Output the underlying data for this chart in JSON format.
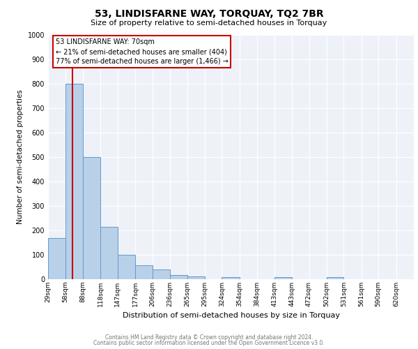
{
  "title": "53, LINDISFARNE WAY, TORQUAY, TQ2 7BR",
  "subtitle": "Size of property relative to semi-detached houses in Torquay",
  "xlabel": "Distribution of semi-detached houses by size in Torquay",
  "ylabel": "Number of semi-detached properties",
  "bin_edges": [
    29,
    58,
    88,
    118,
    147,
    177,
    206,
    236,
    265,
    295,
    324,
    354,
    384,
    413,
    443,
    472,
    502,
    531,
    561,
    590,
    620
  ],
  "bin_labels": [
    "29sqm",
    "58sqm",
    "88sqm",
    "118sqm",
    "147sqm",
    "177sqm",
    "206sqm",
    "236sqm",
    "265sqm",
    "295sqm",
    "324sqm",
    "354sqm",
    "384sqm",
    "413sqm",
    "443sqm",
    "472sqm",
    "502sqm",
    "531sqm",
    "561sqm",
    "590sqm",
    "620sqm"
  ],
  "bar_heights": [
    170,
    800,
    500,
    215,
    100,
    58,
    40,
    18,
    12,
    0,
    8,
    0,
    0,
    10,
    0,
    0,
    10,
    0,
    0,
    0,
    0
  ],
  "bar_color": "#b8d0e8",
  "bar_edge_color": "#6699cc",
  "vline_x": 70,
  "vline_color": "#cc0000",
  "annotation_line1": "53 LINDISFARNE WAY: 70sqm",
  "annotation_line2": "← 21% of semi-detached houses are smaller (404)",
  "annotation_line3": "77% of semi-detached houses are larger (1,466) →",
  "annotation_box_facecolor": "#ffffff",
  "annotation_box_edgecolor": "#cc0000",
  "ylim": [
    0,
    1000
  ],
  "yticks": [
    0,
    100,
    200,
    300,
    400,
    500,
    600,
    700,
    800,
    900,
    1000
  ],
  "bg_color": "#eef2f8",
  "grid_color": "#ffffff",
  "title_fontsize": 10,
  "subtitle_fontsize": 8,
  "ylabel_fontsize": 7.5,
  "xlabel_fontsize": 8,
  "tick_fontsize": 7,
  "xtick_fontsize": 6.5,
  "annotation_fontsize": 7,
  "footer_line1": "Contains HM Land Registry data © Crown copyright and database right 2024.",
  "footer_line2": "Contains public sector information licensed under the Open Government Licence v3.0.",
  "footer_fontsize": 5.5,
  "footer_color": "#777777"
}
